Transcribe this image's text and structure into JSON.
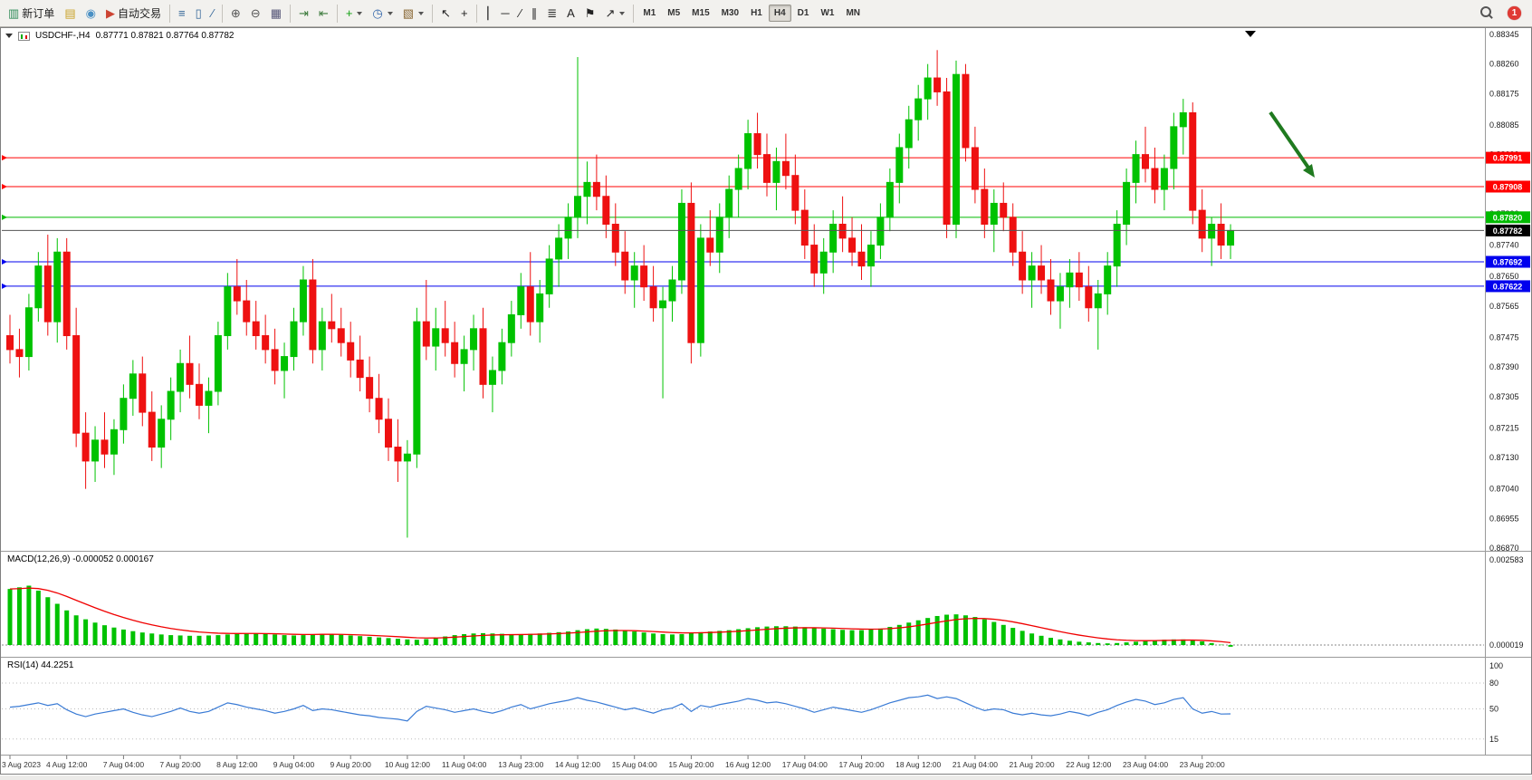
{
  "toolbar": {
    "groups": [
      {
        "name": "file",
        "buttons": [
          {
            "name": "new-order",
            "glyph": "▥",
            "glyph_color": "#2e8b57",
            "label": "新订单"
          },
          {
            "name": "charts",
            "glyph": "▤",
            "glyph_color": "#c9a227"
          },
          {
            "name": "refresh",
            "glyph": "◉",
            "glyph_color": "#4a90c4"
          },
          {
            "name": "auto-trading",
            "glyph": "▶",
            "glyph_color": "#cc4433",
            "label": "自动交易"
          }
        ]
      },
      {
        "name": "chart-type",
        "buttons": [
          {
            "name": "bar-chart",
            "glyph": "≡",
            "glyph_color": "#336699"
          },
          {
            "name": "candlestick-chart",
            "glyph": "▯",
            "glyph_color": "#336699"
          },
          {
            "name": "line-chart",
            "glyph": "∕",
            "glyph_color": "#336699"
          }
        ]
      },
      {
        "name": "zoom",
        "buttons": [
          {
            "name": "zoom-in",
            "glyph": "⊕",
            "glyph_color": "#555555"
          },
          {
            "name": "zoom-out",
            "glyph": "⊖",
            "glyph_color": "#555555"
          },
          {
            "name": "tile-windows",
            "glyph": "▦",
            "glyph_color": "#555577"
          }
        ]
      },
      {
        "name": "scroll",
        "buttons": [
          {
            "name": "auto-scroll",
            "glyph": "⇥",
            "glyph_color": "#3c7a3c"
          },
          {
            "name": "chart-shift",
            "glyph": "⇤",
            "glyph_color": "#3c7a3c"
          }
        ]
      },
      {
        "name": "insert",
        "buttons": [
          {
            "name": "indicators",
            "glyph": "+",
            "glyph_color": "#11a011",
            "dropdown": true
          },
          {
            "name": "periods",
            "glyph": "◷",
            "glyph_color": "#3366aa",
            "dropdown": true
          },
          {
            "name": "templates",
            "glyph": "▧",
            "glyph_color": "#886633",
            "dropdown": true
          }
        ]
      },
      {
        "name": "cursor",
        "buttons": [
          {
            "name": "cursor",
            "glyph": "↖",
            "glyph_color": "#222222"
          },
          {
            "name": "crosshair",
            "glyph": "+",
            "glyph_color": "#222222"
          }
        ]
      },
      {
        "name": "draw",
        "buttons": [
          {
            "name": "vertical-line",
            "glyph": "⎮",
            "glyph_color": "#222222"
          },
          {
            "name": "horizontal-line",
            "glyph": "─",
            "glyph_color": "#222222"
          },
          {
            "name": "trendline",
            "glyph": "∕",
            "glyph_color": "#222222"
          },
          {
            "name": "equidistant-channel",
            "glyph": "∥",
            "glyph_color": "#222222"
          },
          {
            "name": "fibonacci",
            "glyph": "≣",
            "glyph_color": "#222222"
          },
          {
            "name": "text",
            "glyph": "A",
            "glyph_color": "#222222"
          },
          {
            "name": "text-label",
            "glyph": "⚑",
            "glyph_color": "#222222"
          },
          {
            "name": "arrows",
            "glyph": "↗",
            "glyph_color": "#222222",
            "dropdown": true
          }
        ]
      }
    ],
    "timeframes": [
      "M1",
      "M5",
      "M15",
      "M30",
      "H1",
      "H4",
      "D1",
      "W1",
      "MN"
    ],
    "active_timeframe": "H4",
    "notification_count": "1"
  },
  "chart": {
    "title": "USDCHF-,H4",
    "ohlc": "0.87771 0.87821 0.87764 0.87782",
    "macd_label": "MACD(12,26,9) -0.000052 0.000167",
    "rsi_label": "RSI(14) 44.2251"
  },
  "chart_data": {
    "type": "candlestick",
    "symbol": "USDCHF",
    "period": "H4",
    "colors": {
      "bull": "#00c200",
      "bear": "#ee1111",
      "macd_hist": "#00c200",
      "macd_signal": "#f00000",
      "rsi_line": "#3a7bd5",
      "arrow": "#1f7a1f"
    },
    "price_axis": {
      "max": 0.88345,
      "min": 0.8687,
      "labels": [
        "0.88345",
        "0.88260",
        "0.88175",
        "0.88085",
        "0.88000",
        "0.87915",
        "0.87830",
        "0.87740",
        "0.87650",
        "0.87565",
        "0.87475",
        "0.87390",
        "0.87305",
        "0.87215",
        "0.87130",
        "0.87040",
        "0.86955",
        "0.86870"
      ]
    },
    "levels": [
      {
        "price": 0.87991,
        "label": "0.87991",
        "color": "#ff0000"
      },
      {
        "price": 0.87908,
        "label": "0.87908",
        "color": "#ff0000"
      },
      {
        "price": 0.8782,
        "label": "0.87820",
        "color": "#00bb00"
      },
      {
        "price": 0.87692,
        "label": "0.87692",
        "color": "#0000ee"
      },
      {
        "price": 0.87622,
        "label": "0.87622",
        "color": "#0000ee"
      }
    ],
    "current_price": {
      "price": 0.87782,
      "label": "0.87782",
      "color": "#000000"
    },
    "candles": [
      [
        0.8748,
        0.8754,
        0.874,
        0.8744
      ],
      [
        0.8744,
        0.875,
        0.8736,
        0.8742
      ],
      [
        0.8742,
        0.876,
        0.8738,
        0.8756
      ],
      [
        0.8756,
        0.8772,
        0.8752,
        0.8768
      ],
      [
        0.8768,
        0.8777,
        0.8748,
        0.8752
      ],
      [
        0.8752,
        0.8776,
        0.8746,
        0.8772
      ],
      [
        0.8772,
        0.8776,
        0.8744,
        0.8748
      ],
      [
        0.8748,
        0.8756,
        0.8716,
        0.872
      ],
      [
        0.872,
        0.8726,
        0.8704,
        0.8712
      ],
      [
        0.8712,
        0.8722,
        0.8706,
        0.8718
      ],
      [
        0.8718,
        0.8726,
        0.871,
        0.8714
      ],
      [
        0.8714,
        0.8724,
        0.8708,
        0.8721
      ],
      [
        0.8721,
        0.8734,
        0.8717,
        0.873
      ],
      [
        0.873,
        0.8741,
        0.8725,
        0.8737
      ],
      [
        0.8737,
        0.8742,
        0.8722,
        0.8726
      ],
      [
        0.8726,
        0.8732,
        0.8712,
        0.8716
      ],
      [
        0.8716,
        0.8728,
        0.871,
        0.8724
      ],
      [
        0.8724,
        0.8736,
        0.8718,
        0.8732
      ],
      [
        0.8732,
        0.8744,
        0.8726,
        0.874
      ],
      [
        0.874,
        0.8748,
        0.873,
        0.8734
      ],
      [
        0.8734,
        0.874,
        0.8724,
        0.8728
      ],
      [
        0.8728,
        0.8736,
        0.872,
        0.8732
      ],
      [
        0.8732,
        0.8752,
        0.8728,
        0.8748
      ],
      [
        0.8748,
        0.8766,
        0.8744,
        0.8762
      ],
      [
        0.8762,
        0.877,
        0.8754,
        0.8758
      ],
      [
        0.8758,
        0.8764,
        0.8748,
        0.8752
      ],
      [
        0.8752,
        0.8758,
        0.8744,
        0.8748
      ],
      [
        0.8748,
        0.8754,
        0.874,
        0.8744
      ],
      [
        0.8744,
        0.875,
        0.8734,
        0.8738
      ],
      [
        0.8738,
        0.8746,
        0.873,
        0.8742
      ],
      [
        0.8742,
        0.8756,
        0.8738,
        0.8752
      ],
      [
        0.8752,
        0.8768,
        0.8748,
        0.8764
      ],
      [
        0.8764,
        0.877,
        0.874,
        0.8744
      ],
      [
        0.8744,
        0.8756,
        0.8738,
        0.8752
      ],
      [
        0.8752,
        0.876,
        0.8746,
        0.875
      ],
      [
        0.875,
        0.8756,
        0.8742,
        0.8746
      ],
      [
        0.8746,
        0.8752,
        0.8736,
        0.8741
      ],
      [
        0.8741,
        0.8748,
        0.8732,
        0.8736
      ],
      [
        0.8736,
        0.8742,
        0.8726,
        0.873
      ],
      [
        0.873,
        0.8737,
        0.872,
        0.8724
      ],
      [
        0.8724,
        0.873,
        0.8712,
        0.8716
      ],
      [
        0.8716,
        0.8724,
        0.8706,
        0.8712
      ],
      [
        0.8712,
        0.8718,
        0.869,
        0.8714
      ],
      [
        0.8714,
        0.8756,
        0.871,
        0.8752
      ],
      [
        0.8752,
        0.8764,
        0.8741,
        0.8745
      ],
      [
        0.8745,
        0.8756,
        0.8738,
        0.875
      ],
      [
        0.875,
        0.8758,
        0.8742,
        0.8746
      ],
      [
        0.8746,
        0.8752,
        0.8736,
        0.874
      ],
      [
        0.874,
        0.8748,
        0.8732,
        0.8744
      ],
      [
        0.8744,
        0.8754,
        0.8738,
        0.875
      ],
      [
        0.875,
        0.8756,
        0.873,
        0.8734
      ],
      [
        0.8734,
        0.8742,
        0.8726,
        0.8738
      ],
      [
        0.8738,
        0.875,
        0.8734,
        0.8746
      ],
      [
        0.8746,
        0.8758,
        0.8742,
        0.8754
      ],
      [
        0.8754,
        0.8766,
        0.875,
        0.8762
      ],
      [
        0.8762,
        0.8772,
        0.8748,
        0.8752
      ],
      [
        0.8752,
        0.8764,
        0.8746,
        0.876
      ],
      [
        0.876,
        0.8774,
        0.8756,
        0.877
      ],
      [
        0.877,
        0.878,
        0.8762,
        0.8776
      ],
      [
        0.8776,
        0.8786,
        0.877,
        0.8782
      ],
      [
        0.8782,
        0.8828,
        0.8776,
        0.8788
      ],
      [
        0.8788,
        0.8798,
        0.878,
        0.8792
      ],
      [
        0.8792,
        0.88,
        0.8784,
        0.8788
      ],
      [
        0.8788,
        0.8794,
        0.8776,
        0.878
      ],
      [
        0.878,
        0.8786,
        0.8768,
        0.8772
      ],
      [
        0.8772,
        0.8778,
        0.876,
        0.8764
      ],
      [
        0.8764,
        0.8772,
        0.8756,
        0.8768
      ],
      [
        0.8768,
        0.8774,
        0.8758,
        0.8762
      ],
      [
        0.8762,
        0.8768,
        0.8752,
        0.8756
      ],
      [
        0.8756,
        0.8762,
        0.873,
        0.8758
      ],
      [
        0.8758,
        0.8768,
        0.8752,
        0.8764
      ],
      [
        0.8764,
        0.879,
        0.876,
        0.8786
      ],
      [
        0.8786,
        0.8792,
        0.874,
        0.8746
      ],
      [
        0.8746,
        0.878,
        0.8742,
        0.8776
      ],
      [
        0.8776,
        0.8784,
        0.8768,
        0.8772
      ],
      [
        0.8772,
        0.8786,
        0.8766,
        0.8782
      ],
      [
        0.8782,
        0.8794,
        0.8776,
        0.879
      ],
      [
        0.879,
        0.88,
        0.8782,
        0.8796
      ],
      [
        0.8796,
        0.881,
        0.879,
        0.8806
      ],
      [
        0.8806,
        0.8812,
        0.8796,
        0.88
      ],
      [
        0.88,
        0.8806,
        0.8788,
        0.8792
      ],
      [
        0.8792,
        0.8802,
        0.8784,
        0.8798
      ],
      [
        0.8798,
        0.8806,
        0.879,
        0.8794
      ],
      [
        0.8794,
        0.88,
        0.878,
        0.8784
      ],
      [
        0.8784,
        0.879,
        0.877,
        0.8774
      ],
      [
        0.8774,
        0.878,
        0.8762,
        0.8766
      ],
      [
        0.8766,
        0.8776,
        0.876,
        0.8772
      ],
      [
        0.8772,
        0.8784,
        0.8766,
        0.878
      ],
      [
        0.878,
        0.8788,
        0.8772,
        0.8776
      ],
      [
        0.8776,
        0.8782,
        0.8768,
        0.8772
      ],
      [
        0.8772,
        0.878,
        0.8764,
        0.8768
      ],
      [
        0.8768,
        0.8778,
        0.8762,
        0.8774
      ],
      [
        0.8774,
        0.8786,
        0.877,
        0.8782
      ],
      [
        0.8782,
        0.8796,
        0.8778,
        0.8792
      ],
      [
        0.8792,
        0.8806,
        0.8786,
        0.8802
      ],
      [
        0.8802,
        0.8814,
        0.8796,
        0.881
      ],
      [
        0.881,
        0.882,
        0.8804,
        0.8816
      ],
      [
        0.8816,
        0.8826,
        0.881,
        0.8822
      ],
      [
        0.8822,
        0.883,
        0.8814,
        0.8818
      ],
      [
        0.8818,
        0.8822,
        0.8776,
        0.878
      ],
      [
        0.878,
        0.8827,
        0.8776,
        0.8823
      ],
      [
        0.8823,
        0.8826,
        0.8798,
        0.8802
      ],
      [
        0.8802,
        0.8808,
        0.8786,
        0.879
      ],
      [
        0.879,
        0.8796,
        0.8776,
        0.878
      ],
      [
        0.878,
        0.879,
        0.8772,
        0.8786
      ],
      [
        0.8786,
        0.8792,
        0.8778,
        0.8782
      ],
      [
        0.8782,
        0.8786,
        0.8768,
        0.8772
      ],
      [
        0.8772,
        0.8778,
        0.876,
        0.8764
      ],
      [
        0.8764,
        0.8772,
        0.8756,
        0.8768
      ],
      [
        0.8768,
        0.8774,
        0.876,
        0.8764
      ],
      [
        0.8764,
        0.877,
        0.8754,
        0.8758
      ],
      [
        0.8758,
        0.8766,
        0.875,
        0.8762
      ],
      [
        0.8762,
        0.877,
        0.8756,
        0.8766
      ],
      [
        0.8766,
        0.8772,
        0.8758,
        0.8762
      ],
      [
        0.8762,
        0.8768,
        0.8752,
        0.8756
      ],
      [
        0.8756,
        0.8764,
        0.8744,
        0.876
      ],
      [
        0.876,
        0.8772,
        0.8754,
        0.8768
      ],
      [
        0.8768,
        0.8784,
        0.8762,
        0.878
      ],
      [
        0.878,
        0.8796,
        0.8774,
        0.8792
      ],
      [
        0.8792,
        0.8804,
        0.8786,
        0.88
      ],
      [
        0.88,
        0.8808,
        0.8792,
        0.8796
      ],
      [
        0.8796,
        0.8802,
        0.8786,
        0.879
      ],
      [
        0.879,
        0.88,
        0.8784,
        0.8796
      ],
      [
        0.8796,
        0.8812,
        0.879,
        0.8808
      ],
      [
        0.8808,
        0.8816,
        0.88,
        0.8812
      ],
      [
        0.8812,
        0.8815,
        0.878,
        0.8784
      ],
      [
        0.8784,
        0.879,
        0.8772,
        0.8776
      ],
      [
        0.8776,
        0.8782,
        0.8768,
        0.878
      ],
      [
        0.878,
        0.8786,
        0.877,
        0.8774
      ],
      [
        0.8774,
        0.878,
        0.877,
        0.87782
      ]
    ],
    "time_labels": [
      "3 Aug 2023",
      "4 Aug 12:00",
      "7 Aug 04:00",
      "7 Aug 20:00",
      "8 Aug 12:00",
      "9 Aug 04:00",
      "9 Aug 20:00",
      "10 Aug 12:00",
      "11 Aug 04:00",
      "13 Aug 23:00",
      "14 Aug 12:00",
      "15 Aug 04:00",
      "15 Aug 20:00",
      "16 Aug 12:00",
      "17 Aug 04:00",
      "17 Aug 20:00",
      "18 Aug 12:00",
      "21 Aug 04:00",
      "21 Aug 20:00",
      "22 Aug 12:00",
      "23 Aug 04:00",
      "23 Aug 20:00"
    ],
    "macd": {
      "unit": 1e-06,
      "scale_max_label": "0.002583",
      "zero_label": "0.000019",
      "histogram": [
        1700,
        1750,
        1800,
        1650,
        1450,
        1250,
        1050,
        900,
        780,
        680,
        600,
        530,
        470,
        420,
        380,
        350,
        320,
        300,
        290,
        280,
        280,
        290,
        300,
        320,
        340,
        350,
        350,
        340,
        320,
        300,
        290,
        300,
        320,
        340,
        330,
        310,
        290,
        270,
        250,
        230,
        210,
        190,
        170,
        160,
        180,
        220,
        260,
        300,
        330,
        350,
        360,
        350,
        340,
        330,
        330,
        340,
        350,
        370,
        390,
        410,
        450,
        480,
        500,
        490,
        470,
        440,
        410,
        380,
        350,
        330,
        320,
        330,
        360,
        390,
        410,
        430,
        450,
        480,
        510,
        540,
        560,
        570,
        570,
        560,
        540,
        520,
        500,
        480,
        460,
        450,
        450,
        470,
        500,
        550,
        610,
        680,
        750,
        820,
        880,
        920,
        930,
        900,
        850,
        780,
        700,
        610,
        520,
        430,
        350,
        280,
        220,
        170,
        130,
        100,
        80,
        60,
        50,
        60,
        80,
        100,
        120,
        140,
        160,
        170,
        170,
        150,
        110,
        60,
        10,
        -52
      ]
    },
    "rsi": {
      "levels": [
        100,
        80,
        50,
        15
      ],
      "values": [
        52,
        53,
        55,
        57,
        54,
        56,
        49,
        44,
        41,
        44,
        46,
        48,
        50,
        46,
        43,
        41,
        44,
        47,
        51,
        47,
        45,
        47,
        52,
        57,
        55,
        52,
        50,
        48,
        45,
        47,
        50,
        54,
        48,
        50,
        49,
        47,
        45,
        43,
        42,
        40,
        39,
        38,
        36,
        47,
        53,
        51,
        49,
        46,
        48,
        50,
        47,
        45,
        48,
        52,
        55,
        50,
        53,
        56,
        58,
        60,
        63,
        60,
        58,
        55,
        52,
        49,
        51,
        48,
        45,
        49,
        51,
        56,
        47,
        54,
        52,
        55,
        57,
        59,
        62,
        60,
        57,
        58,
        56,
        53,
        50,
        46,
        49,
        52,
        50,
        48,
        46,
        49,
        53,
        57,
        60,
        63,
        64,
        66,
        62,
        64,
        62,
        57,
        52,
        48,
        50,
        49,
        45,
        43,
        45,
        43,
        42,
        44,
        47,
        45,
        42,
        46,
        49,
        54,
        58,
        61,
        59,
        55,
        57,
        61,
        63,
        50,
        45,
        47,
        44,
        44.2
      ]
    }
  }
}
